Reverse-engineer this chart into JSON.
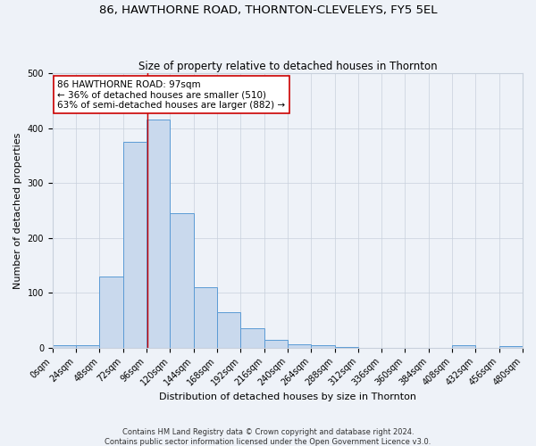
{
  "title": "86, HAWTHORNE ROAD, THORNTON-CLEVELEYS, FY5 5EL",
  "subtitle": "Size of property relative to detached houses in Thornton",
  "xlabel": "Distribution of detached houses by size in Thornton",
  "ylabel": "Number of detached properties",
  "bin_edges": [
    0,
    24,
    48,
    72,
    96,
    120,
    144,
    168,
    192,
    216,
    240,
    264,
    288,
    312,
    336,
    360,
    384,
    408,
    432,
    456,
    480
  ],
  "bar_heights": [
    4,
    4,
    130,
    375,
    415,
    245,
    110,
    65,
    35,
    15,
    6,
    5,
    2,
    0,
    0,
    0,
    0,
    5,
    0,
    3
  ],
  "bar_color": "#c9d9ed",
  "bar_edge_color": "#5b9bd5",
  "grid_color": "#c8d0dc",
  "background_color": "#eef2f8",
  "vline_x": 97,
  "vline_color": "#cc0000",
  "annotation_text": "86 HAWTHORNE ROAD: 97sqm\n← 36% of detached houses are smaller (510)\n63% of semi-detached houses are larger (882) →",
  "annotation_box_color": "#ffffff",
  "annotation_box_edge_color": "#cc0000",
  "ylim": [
    0,
    500
  ],
  "tick_labels": [
    "0sqm",
    "24sqm",
    "48sqm",
    "72sqm",
    "96sqm",
    "120sqm",
    "144sqm",
    "168sqm",
    "192sqm",
    "216sqm",
    "240sqm",
    "264sqm",
    "288sqm",
    "312sqm",
    "336sqm",
    "360sqm",
    "384sqm",
    "408sqm",
    "432sqm",
    "456sqm",
    "480sqm"
  ],
  "footer_line1": "Contains HM Land Registry data © Crown copyright and database right 2024.",
  "footer_line2": "Contains public sector information licensed under the Open Government Licence v3.0.",
  "title_fontsize": 9.5,
  "subtitle_fontsize": 8.5,
  "axis_label_fontsize": 8,
  "tick_fontsize": 7,
  "annotation_fontsize": 7.5,
  "footer_fontsize": 6
}
